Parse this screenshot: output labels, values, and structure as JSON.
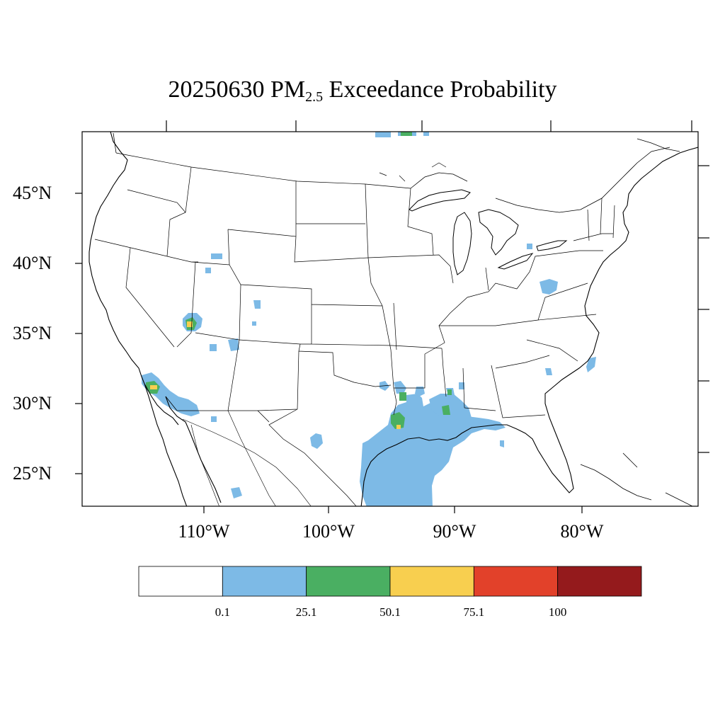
{
  "title": {
    "date": "20250630",
    "pm_main": "PM",
    "pm_sub": "2.5",
    "rest": "Exceedance Probability"
  },
  "lat_labels": [
    "45°N",
    "40°N",
    "35°N",
    "30°N",
    "25°N"
  ],
  "lon_labels": [
    "110°W",
    "100°W",
    "90°W",
    "80°W"
  ],
  "colorbar": {
    "colors": [
      "#ffffff",
      "#7dbae6",
      "#4aaf62",
      "#f8cf4f",
      "#e2412a",
      "#941a1c"
    ],
    "tick_labels": [
      "0.1",
      "25.1",
      "50.1",
      "75.1",
      "100"
    ]
  },
  "palette": {
    "blue": "#7dbae6",
    "green": "#4aaf62",
    "yellow": "#f8cf4f"
  }
}
